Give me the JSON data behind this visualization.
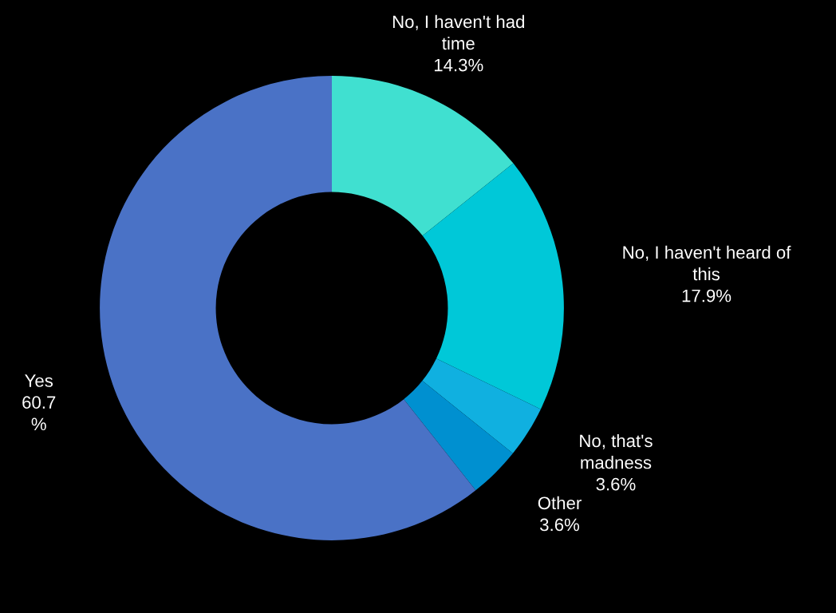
{
  "chart_data": {
    "type": "donut",
    "categories": [
      "No, I haven't had\ntime",
      "No, I haven't heard of\nthis",
      "No, that's\nmadness",
      "Other",
      "Yes"
    ],
    "values": [
      14.3,
      17.9,
      3.6,
      3.6,
      60.7
    ],
    "colors": [
      "#40e0d0",
      "#00c8d8",
      "#10b0e0",
      "#0090d0",
      "#4a72c6"
    ],
    "value_labels": [
      "14.3%",
      "17.9%",
      "3.6%",
      "3.6%",
      "60.7\n%"
    ],
    "legend": false
  }
}
